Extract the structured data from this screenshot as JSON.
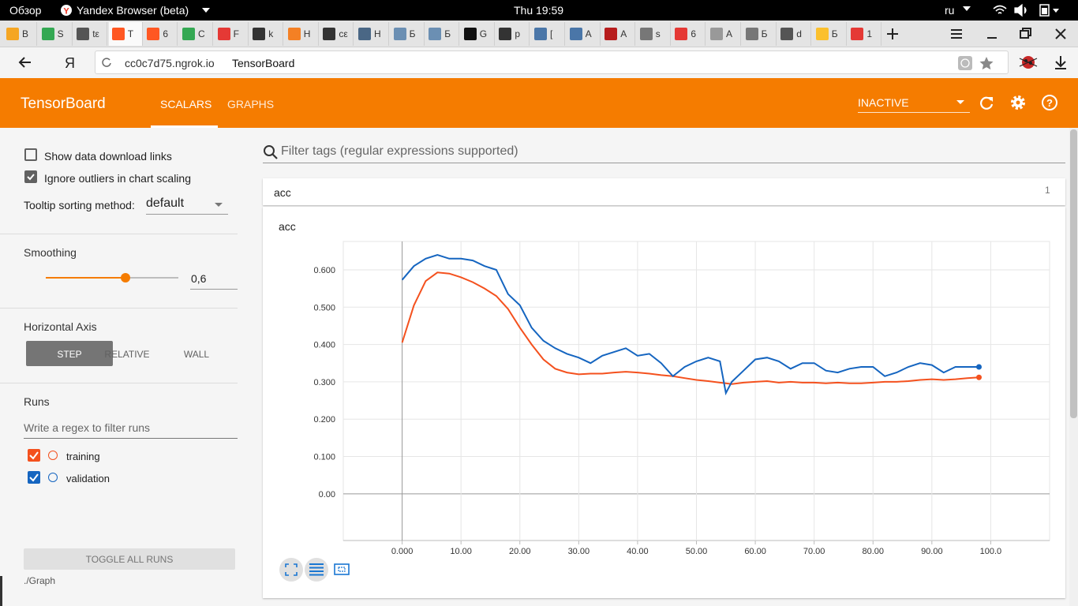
{
  "os_bar": {
    "overview": "Обзор",
    "app": "Yandex Browser (beta)",
    "clock": "Thu 19:59",
    "lang": "ru"
  },
  "browser": {
    "tabs": [
      "B",
      "S",
      "tε",
      "T",
      "6",
      "C",
      "F",
      "k",
      "H",
      "cε",
      "H",
      "Б",
      "Б",
      "G",
      "p",
      "[",
      "A",
      "A",
      "s",
      "6",
      "A",
      "Б",
      "d",
      "Б",
      "1"
    ],
    "active_tab": 3,
    "logo": "Я",
    "url": "cc0c7d75.ngrok.io",
    "page_title": "TensorBoard"
  },
  "header": {
    "title": "TensorBoard",
    "nav": [
      "SCALARS",
      "GRAPHS"
    ],
    "active_nav": 0,
    "status": "INACTIVE"
  },
  "sidebar": {
    "options": [
      {
        "label": "Show data download links",
        "checked": false
      },
      {
        "label": "Ignore outliers in chart scaling",
        "checked": true
      }
    ],
    "tooltip_label": "Tooltip sorting method:",
    "tooltip_value": "default",
    "smoothing_label": "Smoothing",
    "smoothing_value": "0,6",
    "axis_label": "Horizontal Axis",
    "axis_options": [
      "STEP",
      "RELATIVE",
      "WALL"
    ],
    "axis_selected": 0,
    "runs_label": "Runs",
    "runs_placeholder": "Write a regex to filter runs",
    "toggle_button": "TOGGLE ALL RUNS",
    "log_dir": "./Graph"
  },
  "main": {
    "filter_placeholder": "Filter tags (regular expressions supported)",
    "card_title": "acc",
    "card_count": "1"
  },
  "chart_data": {
    "type": "line",
    "title": "acc",
    "x": [
      0,
      2,
      4,
      6,
      8,
      10,
      12,
      14,
      16,
      18,
      20,
      22,
      24,
      26,
      28,
      30,
      32,
      34,
      36,
      38,
      40,
      42,
      44,
      46,
      48,
      50,
      52,
      54,
      55,
      56,
      58,
      60,
      62,
      64,
      66,
      68,
      70,
      72,
      74,
      76,
      78,
      80,
      82,
      84,
      86,
      88,
      90,
      92,
      94,
      96,
      98
    ],
    "series": [
      {
        "name": "training",
        "color": "#f4511e",
        "values": [
          0.405,
          0.505,
          0.57,
          0.593,
          0.59,
          0.58,
          0.567,
          0.55,
          0.53,
          0.495,
          0.445,
          0.4,
          0.36,
          0.335,
          0.325,
          0.32,
          0.322,
          0.322,
          0.325,
          0.327,
          0.325,
          0.322,
          0.318,
          0.315,
          0.31,
          0.305,
          0.302,
          0.298,
          0.296,
          0.294,
          0.298,
          0.3,
          0.302,
          0.298,
          0.3,
          0.298,
          0.298,
          0.296,
          0.298,
          0.296,
          0.296,
          0.298,
          0.3,
          0.3,
          0.302,
          0.305,
          0.307,
          0.305,
          0.307,
          0.31,
          0.312
        ]
      },
      {
        "name": "validation",
        "color": "#1565c0",
        "values": [
          0.573,
          0.61,
          0.63,
          0.64,
          0.63,
          0.63,
          0.625,
          0.61,
          0.6,
          0.535,
          0.505,
          0.445,
          0.41,
          0.39,
          0.375,
          0.365,
          0.35,
          0.37,
          0.38,
          0.39,
          0.37,
          0.375,
          0.35,
          0.315,
          0.34,
          0.355,
          0.365,
          0.355,
          0.27,
          0.3,
          0.33,
          0.36,
          0.365,
          0.355,
          0.335,
          0.35,
          0.35,
          0.33,
          0.325,
          0.335,
          0.34,
          0.34,
          0.315,
          0.325,
          0.34,
          0.35,
          0.345,
          0.325,
          0.34,
          0.34,
          0.34
        ]
      }
    ],
    "xlim": [
      -10,
      110
    ],
    "ylim": [
      -0.125,
      0.676
    ],
    "xticks": [
      {
        "value": 0,
        "label": "0.000"
      },
      {
        "value": 10,
        "label": "10.00"
      },
      {
        "value": 20,
        "label": "20.00"
      },
      {
        "value": 30,
        "label": "30.00"
      },
      {
        "value": 40,
        "label": "40.00"
      },
      {
        "value": 50,
        "label": "50.00"
      },
      {
        "value": 60,
        "label": "60.00"
      },
      {
        "value": 70,
        "label": "70.00"
      },
      {
        "value": 80,
        "label": "80.00"
      },
      {
        "value": 90,
        "label": "90.00"
      },
      {
        "value": 100,
        "label": "100.0"
      }
    ],
    "yticks": [
      {
        "value": 0,
        "label": "0.00"
      },
      {
        "value": 0.1,
        "label": "0.100"
      },
      {
        "value": 0.2,
        "label": "0.200"
      },
      {
        "value": 0.3,
        "label": "0.300"
      },
      {
        "value": 0.4,
        "label": "0.400"
      },
      {
        "value": 0.5,
        "label": "0.500"
      },
      {
        "value": 0.6,
        "label": "0.600"
      }
    ],
    "grid": true
  }
}
